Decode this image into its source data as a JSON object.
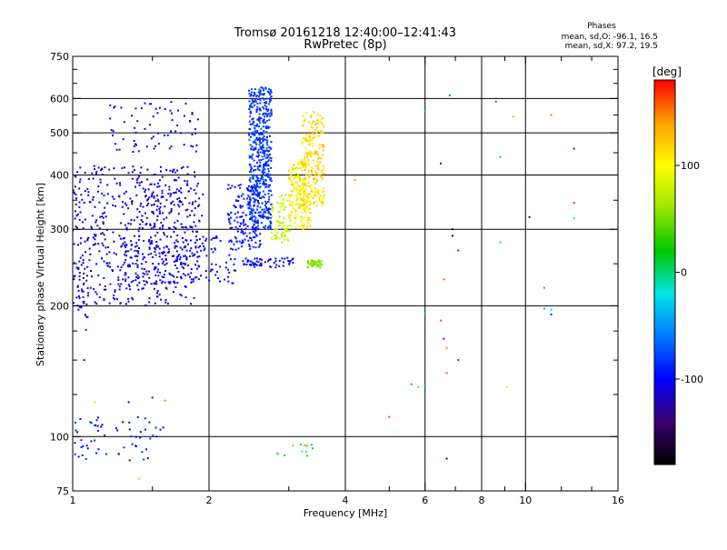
{
  "chart_data": {
    "type": "scatter",
    "title": "Tromsø 20161218 12:40:00–12:41:43",
    "subtitle": "RwPretec (8p)",
    "xlabel": "Frequency [MHz]",
    "ylabel": "Stationary phase Virtual Height [km]",
    "xscale": "log",
    "yscale": "log",
    "xlim": [
      1,
      16
    ],
    "ylim": [
      75,
      750
    ],
    "x_ticks": [
      1,
      2,
      4,
      6,
      8,
      10,
      16
    ],
    "x_tick_labels": [
      "1",
      "2",
      "4",
      "6",
      "8",
      "10",
      "16"
    ],
    "x_minor_ticks": [
      1.5,
      3,
      5,
      7,
      9,
      12,
      14
    ],
    "y_ticks": [
      75,
      100,
      200,
      300,
      400,
      500,
      600,
      750
    ],
    "y_tick_labels": [
      "75",
      "100",
      "200",
      "300",
      "400",
      "500",
      "600",
      "750"
    ],
    "y_minor_ticks": [
      125,
      150,
      175,
      250,
      350,
      450,
      550,
      650,
      700
    ],
    "x_gridlines": [
      2,
      4,
      6,
      8,
      10
    ],
    "y_gridlines": [
      100,
      200,
      300,
      400,
      500,
      600
    ],
    "legend_title": "Phases",
    "legend_lines": [
      "mean, sd,O: -96.1, 16.5",
      "mean, sd,X: 97.2, 19.5"
    ],
    "colorbar": {
      "label": "[deg]",
      "range": [
        -180,
        180
      ],
      "ticks": [
        100,
        0,
        -100
      ],
      "tick_labels": [
        "100",
        "0",
        "-100"
      ],
      "stops": [
        "#000000",
        "#3a0070",
        "#0000ff",
        "#0078ff",
        "#00e6e6",
        "#00c800",
        "#9be600",
        "#ffff00",
        "#ffa000",
        "#ff0000"
      ]
    },
    "point_groups": [
      {
        "x_range": [
          1.0,
          1.9
        ],
        "y_range": [
          200,
          420
        ],
        "count": 520,
        "phase": [
          -125,
          -95
        ]
      },
      {
        "x_range": [
          1.02,
          1.1
        ],
        "y_range": [
          185,
          260
        ],
        "count": 25,
        "phase": [
          -115,
          -95
        ]
      },
      {
        "x_range": [
          1.3,
          2.3
        ],
        "y_range": [
          225,
          290
        ],
        "count": 180,
        "phase": [
          -118,
          -92
        ]
      },
      {
        "x_range": [
          1.4,
          1.95
        ],
        "y_range": [
          300,
          390
        ],
        "count": 90,
        "phase": [
          -125,
          -100
        ]
      },
      {
        "x_range": [
          1.2,
          1.9
        ],
        "y_range": [
          450,
          590
        ],
        "count": 70,
        "phase": [
          -120,
          -95
        ]
      },
      {
        "x_range": [
          2.2,
          2.6
        ],
        "y_range": [
          270,
          380
        ],
        "count": 160,
        "phase": [
          -105,
          -85
        ]
      },
      {
        "x_range": [
          2.45,
          2.75
        ],
        "y_range": [
          300,
          640
        ],
        "count": 520,
        "phase": [
          -95,
          -70
        ]
      },
      {
        "x_range": [
          2.75,
          3.05
        ],
        "y_range": [
          280,
          360
        ],
        "count": 70,
        "phase": [
          60,
          100
        ]
      },
      {
        "x_range": [
          3.0,
          3.35
        ],
        "y_range": [
          300,
          430
        ],
        "count": 200,
        "phase": [
          85,
          125
        ]
      },
      {
        "x_range": [
          3.2,
          3.6
        ],
        "y_range": [
          340,
          560
        ],
        "count": 220,
        "phase": [
          95,
          135
        ]
      },
      {
        "x_range": [
          2.35,
          3.1
        ],
        "y_range": [
          245,
          258
        ],
        "count": 60,
        "phase": [
          -112,
          -90
        ]
      },
      {
        "x_range": [
          3.3,
          3.55
        ],
        "y_range": [
          245,
          255
        ],
        "count": 45,
        "phase": [
          40,
          70
        ]
      },
      {
        "x_range": [
          1.0,
          1.6
        ],
        "y_range": [
          88,
          112
        ],
        "count": 60,
        "phase": [
          -115,
          -80
        ]
      },
      {
        "x_range": [
          2.8,
          3.4
        ],
        "y_range": [
          90,
          98
        ],
        "count": 12,
        "phase": [
          -40,
          60
        ]
      }
    ],
    "points": [
      {
        "x": 6.0,
        "y": 560,
        "phase": -40
      },
      {
        "x": 6.8,
        "y": 610,
        "phase": -60
      },
      {
        "x": 8.6,
        "y": 590,
        "phase": -60
      },
      {
        "x": 9.4,
        "y": 545,
        "phase": 130
      },
      {
        "x": 11.4,
        "y": 550,
        "phase": 150
      },
      {
        "x": 12.8,
        "y": 460,
        "phase": -90
      },
      {
        "x": 8.8,
        "y": 440,
        "phase": -30
      },
      {
        "x": 6.5,
        "y": 425,
        "phase": -100
      },
      {
        "x": 4.2,
        "y": 390,
        "phase": 140
      },
      {
        "x": 10.2,
        "y": 320,
        "phase": -150
      },
      {
        "x": 12.8,
        "y": 345,
        "phase": 170
      },
      {
        "x": 12.8,
        "y": 318,
        "phase": -20
      },
      {
        "x": 6.9,
        "y": 300,
        "phase": -160
      },
      {
        "x": 6.9,
        "y": 290,
        "phase": -160
      },
      {
        "x": 8.8,
        "y": 280,
        "phase": -30
      },
      {
        "x": 7.1,
        "y": 268,
        "phase": -80
      },
      {
        "x": 6.6,
        "y": 230,
        "phase": 160
      },
      {
        "x": 11.0,
        "y": 220,
        "phase": -40
      },
      {
        "x": 11.0,
        "y": 197,
        "phase": -40
      },
      {
        "x": 11.4,
        "y": 196,
        "phase": -20
      },
      {
        "x": 11.4,
        "y": 191,
        "phase": -90
      },
      {
        "x": 6.0,
        "y": 192,
        "phase": -40
      },
      {
        "x": 6.5,
        "y": 185,
        "phase": 160
      },
      {
        "x": 6.6,
        "y": 168,
        "phase": -90
      },
      {
        "x": 6.7,
        "y": 160,
        "phase": 150
      },
      {
        "x": 7.1,
        "y": 150,
        "phase": -80
      },
      {
        "x": 6.7,
        "y": 140,
        "phase": 160
      },
      {
        "x": 5.6,
        "y": 132,
        "phase": 160
      },
      {
        "x": 5.8,
        "y": 130,
        "phase": 40
      },
      {
        "x": 6.0,
        "y": 131,
        "phase": -40
      },
      {
        "x": 9.1,
        "y": 130,
        "phase": 110
      },
      {
        "x": 5.0,
        "y": 111,
        "phase": 160
      },
      {
        "x": 6.7,
        "y": 89,
        "phase": -100
      },
      {
        "x": 1.4,
        "y": 80,
        "phase": 130
      },
      {
        "x": 1.12,
        "y": 120,
        "phase": 120
      },
      {
        "x": 1.33,
        "y": 120,
        "phase": -100
      },
      {
        "x": 1.5,
        "y": 123,
        "phase": -90
      },
      {
        "x": 1.6,
        "y": 121,
        "phase": 40
      },
      {
        "x": 1.06,
        "y": 150,
        "phase": -100
      },
      {
        "x": 1.07,
        "y": 176,
        "phase": -90
      }
    ]
  }
}
